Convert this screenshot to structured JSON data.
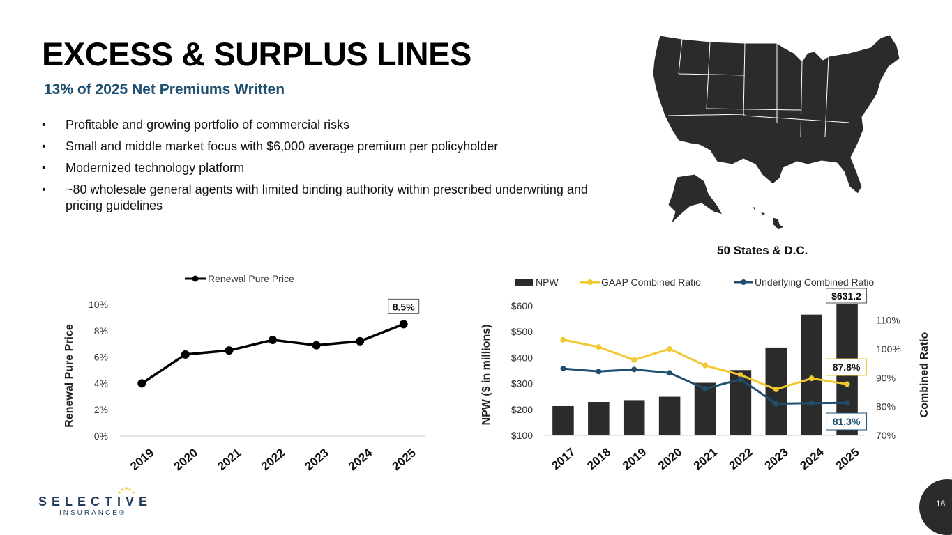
{
  "header": {
    "title": "EXCESS & SURPLUS LINES",
    "subtitle": "13% of 2025 Net Premiums Written"
  },
  "bullets": [
    "Profitable and growing portfolio of commercial risks",
    "Small and middle market focus with $6,000 average premium per policyholder",
    "Modernized technology platform",
    "~80 wholesale general agents with limited binding authority within prescribed underwriting and pricing guidelines"
  ],
  "map": {
    "caption": "50 States & D.C.",
    "color": "#2b2b2b"
  },
  "colors": {
    "subtitle": "#1f4e6e",
    "bar": "#2b2b2b",
    "gaap": "#f2c830",
    "underlying": "#1f4e6e"
  },
  "chart_data": [
    {
      "type": "line",
      "legend": [
        "Renewal Pure Price"
      ],
      "legend_position": "top",
      "ylabel": "Renewal Pure Price",
      "yticks": [
        "0%",
        "2%",
        "4%",
        "6%",
        "8%",
        "10%"
      ],
      "ylim": [
        0,
        10
      ],
      "x": [
        "2019",
        "2020",
        "2021",
        "2022",
        "2023",
        "2024",
        "2025"
      ],
      "series": [
        {
          "name": "Renewal Pure Price",
          "values": [
            4.0,
            6.2,
            6.5,
            7.3,
            6.9,
            7.2,
            8.5
          ]
        }
      ],
      "annotations": [
        {
          "x": "2025",
          "label": "8.5%"
        }
      ]
    },
    {
      "type": "bar",
      "legend": [
        "NPW",
        "GAAP Combined Ratio",
        "Underlying Combined Ratio"
      ],
      "legend_position": "top",
      "ylabel": "NPW ($ in millions)",
      "y2label": "Combined Ratio",
      "yticks": [
        "$100",
        "$200",
        "$300",
        "$400",
        "$500",
        "$600"
      ],
      "y2ticks": [
        "70%",
        "80%",
        "90%",
        "100%",
        "110%"
      ],
      "ylim": [
        100,
        600
      ],
      "y2lim": [
        70,
        115
      ],
      "categories": [
        "2017",
        "2018",
        "2019",
        "2020",
        "2021",
        "2022",
        "2023",
        "2024",
        "2025"
      ],
      "series": [
        {
          "name": "NPW",
          "type": "bar",
          "axis": "left",
          "values": [
            213,
            229,
            236,
            249,
            303,
            352,
            439,
            566,
            631.2
          ]
        },
        {
          "name": "GAAP Combined Ratio",
          "type": "line",
          "axis": "right",
          "values": [
            103.2,
            100.7,
            96.2,
            100.0,
            94.3,
            91.0,
            86.0,
            89.8,
            87.8
          ]
        },
        {
          "name": "Underlying Combined Ratio",
          "type": "line",
          "axis": "right",
          "values": [
            93.2,
            92.2,
            92.9,
            91.7,
            86.2,
            89.5,
            81.0,
            81.2,
            81.3
          ]
        }
      ],
      "annotations": [
        {
          "series": "NPW",
          "x": "2025",
          "label": "$631.2"
        },
        {
          "series": "GAAP Combined Ratio",
          "x": "2025",
          "label": "87.8%"
        },
        {
          "series": "Underlying Combined Ratio",
          "x": "2025",
          "label": "81.3%"
        }
      ]
    }
  ],
  "logo": {
    "name": "SELECTIVE",
    "sub": "INSURANCE®"
  },
  "page_number": "16"
}
